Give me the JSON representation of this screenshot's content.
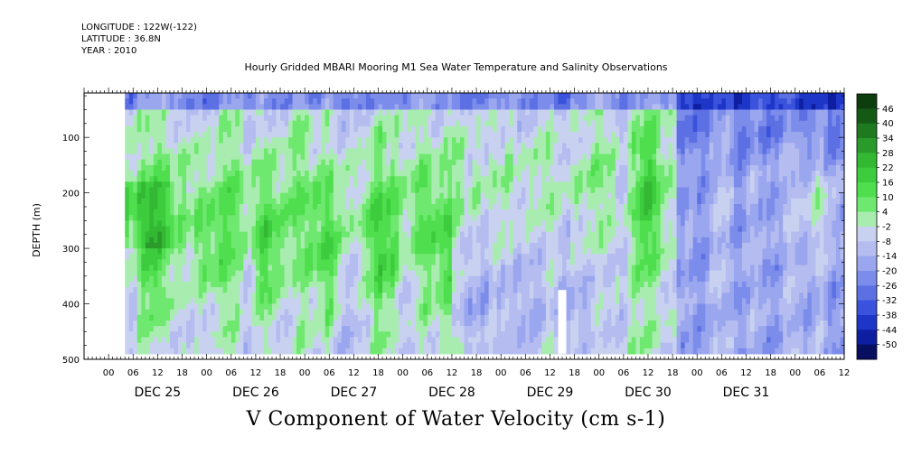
{
  "header": {
    "longitude": "LONGITUDE : 122W(-122)",
    "latitude": "LATITUDE : 36.8N",
    "year": "YEAR : 2010",
    "title": "Hourly Gridded MBARI Mooring M1 Sea Water Temperature and Salinity Observations"
  },
  "footer": {
    "variable_title": "V Component of Water Velocity (cm s-1)"
  },
  "chart_data": {
    "type": "heatmap",
    "title": "Hourly Gridded MBARI Mooring M1 Sea Water Temperature and Salinity Observations",
    "xlabel": "",
    "ylabel": "DEPTH (m)",
    "units": "cm s-1",
    "y_axis": {
      "range": [
        500,
        20
      ],
      "inverted": true,
      "ticks": [
        100,
        200,
        300,
        400,
        500
      ]
    },
    "x_axis": {
      "start_hour": "DEC 24 18",
      "end_hour": "Jan 01 12",
      "hour_labels": [
        "00",
        "06",
        "12",
        "18"
      ],
      "days": [
        "DEC 25",
        "DEC 26",
        "DEC 27",
        "DEC 28",
        "DEC 29",
        "DEC 30",
        "DEC 31"
      ]
    },
    "colorbar": {
      "levels": [
        46,
        40,
        34,
        28,
        22,
        16,
        10,
        4,
        -2,
        -8,
        -14,
        -20,
        -26,
        -32,
        -38,
        -44,
        -50
      ],
      "colors": [
        "#0d3d0d",
        "#145a14",
        "#1f7a1f",
        "#2a9a2a",
        "#33b833",
        "#3dcc3d",
        "#4ede4e",
        "#6ee86e",
        "#a8ecb0",
        "#c8d2f0",
        "#b4bcf0",
        "#9aa6ee",
        "#7c8cea",
        "#5c70e4",
        "#3a52dc",
        "#1e36c8",
        "#0e1ea0",
        "#080e60"
      ]
    },
    "white_gap": {
      "day": "DEC 29",
      "hour_start": 14,
      "hour_end": 16,
      "depth_start": 375,
      "depth_end": 490
    },
    "data_depth_range": [
      20,
      490
    ],
    "data_time_start": "DEC 25 04"
  }
}
